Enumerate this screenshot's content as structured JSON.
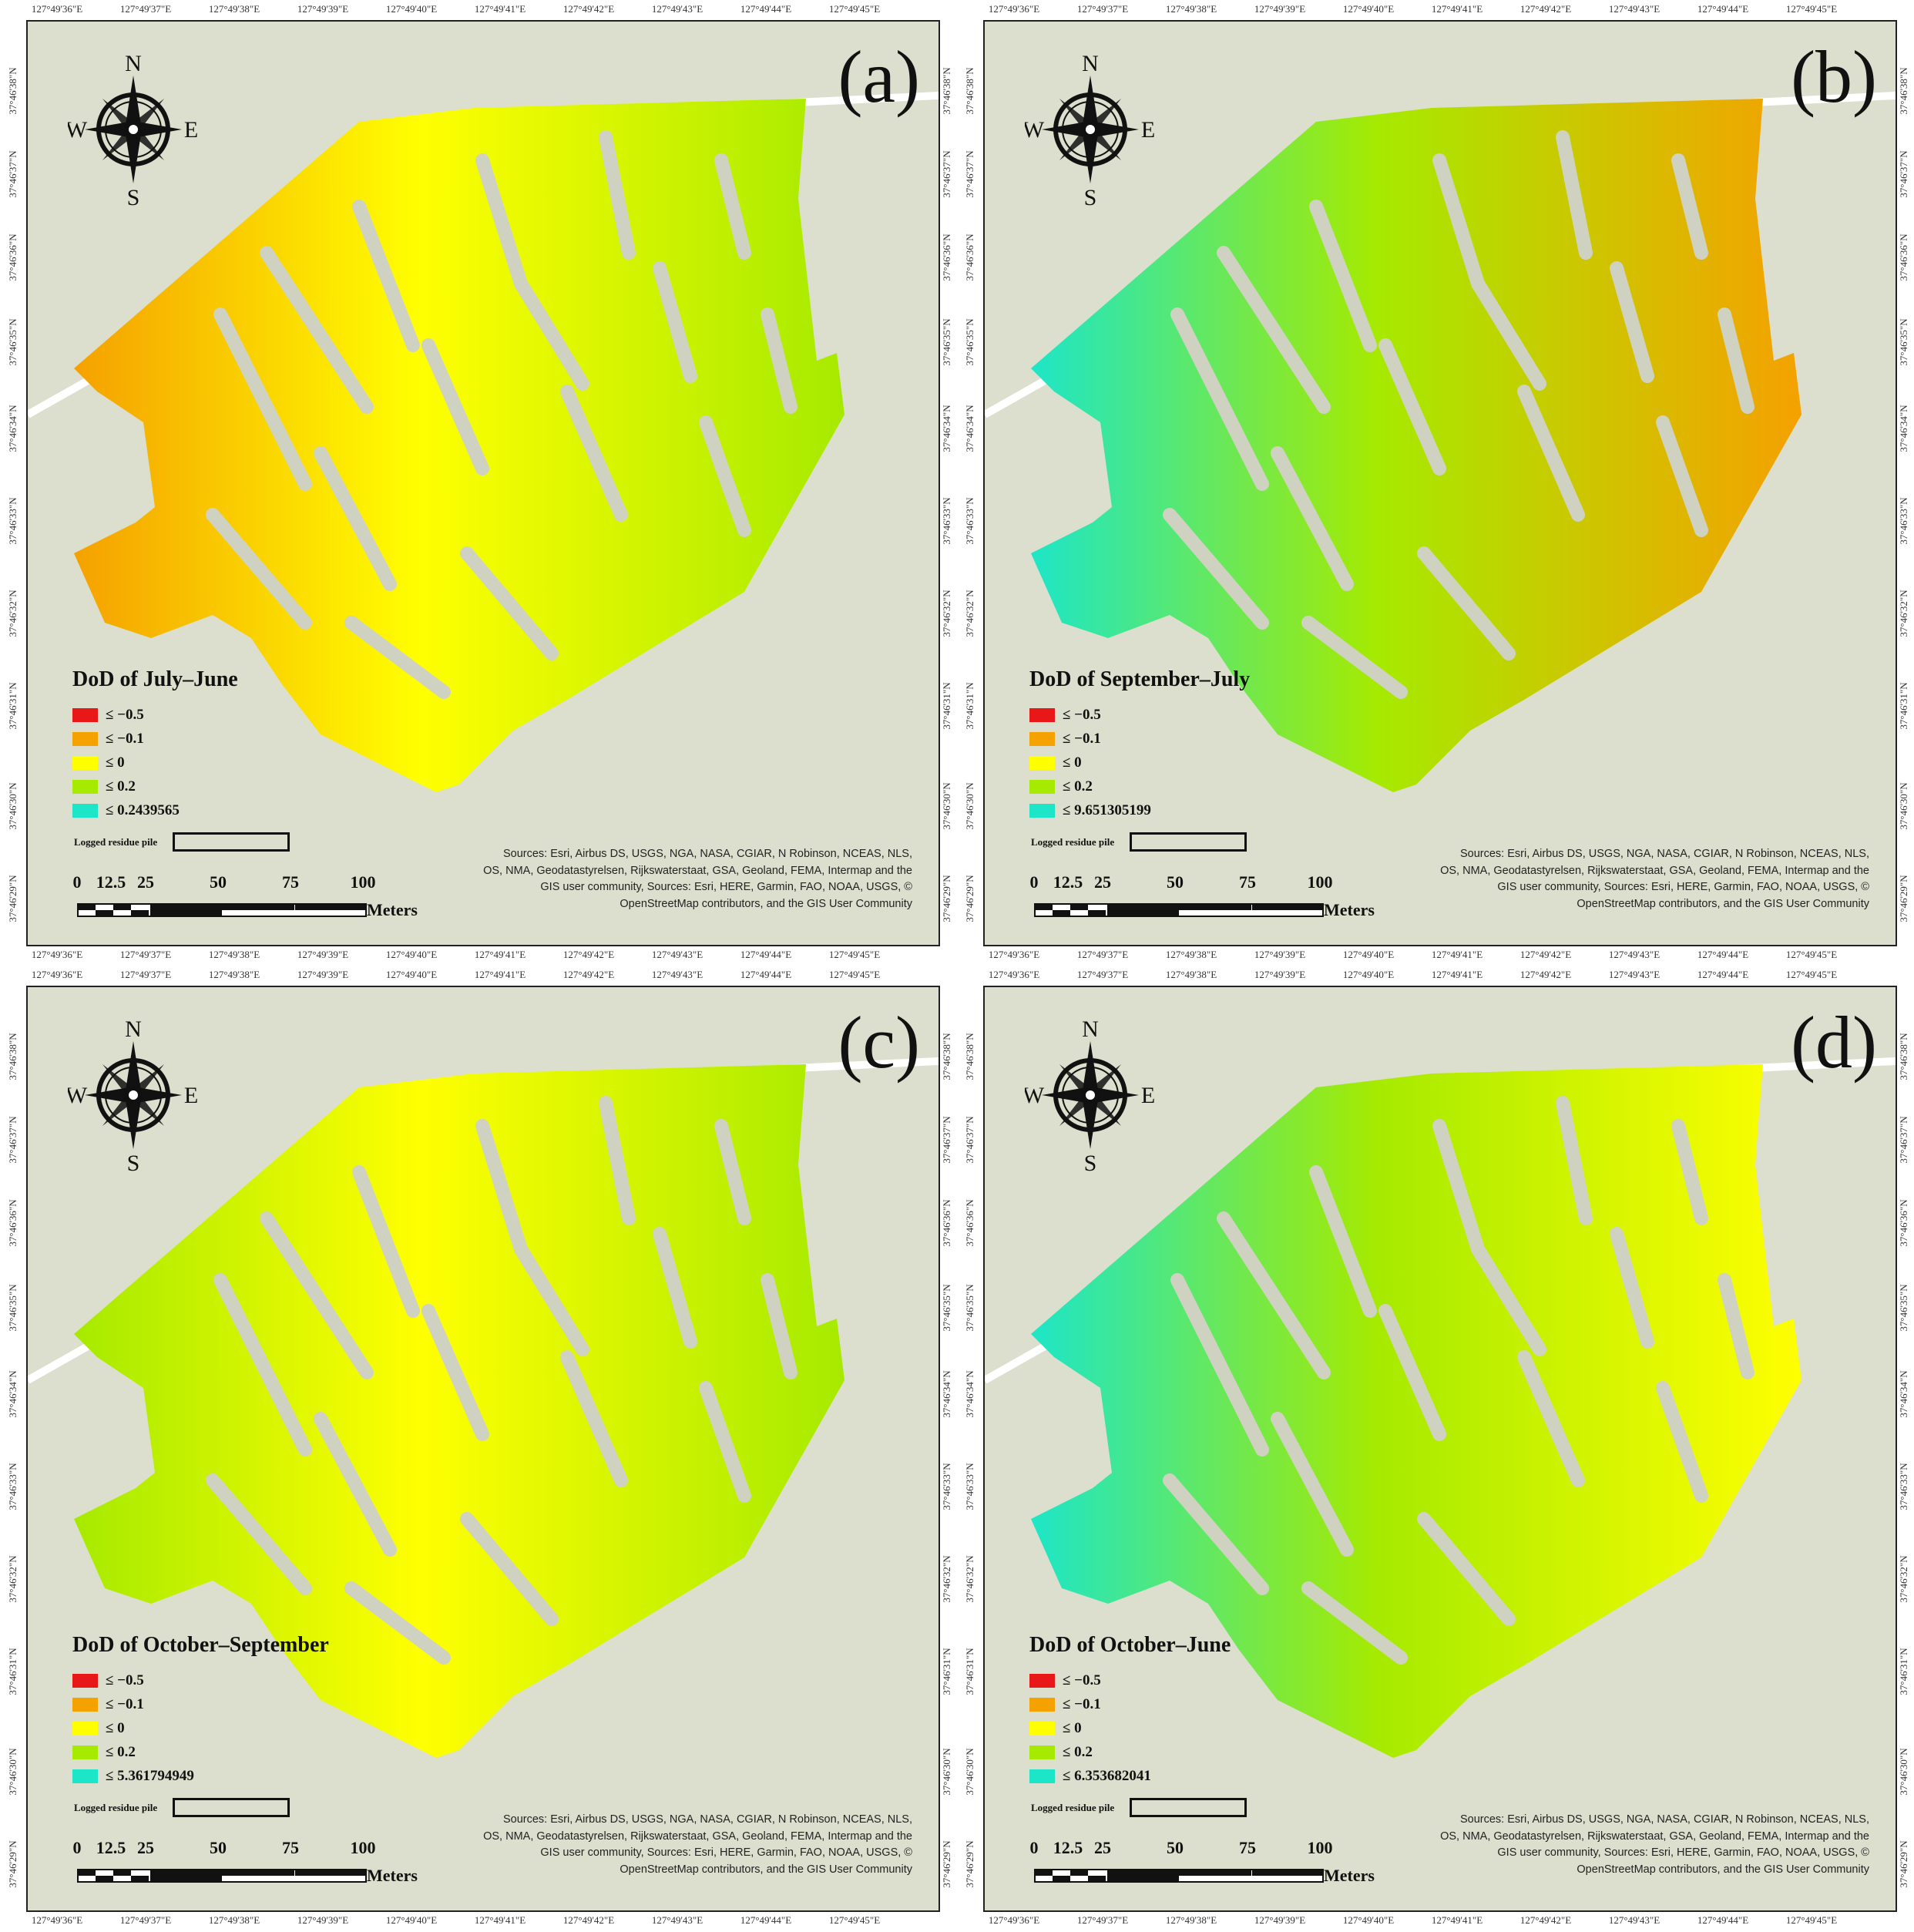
{
  "top_ticks": [
    "127°49'36\"E",
    "127°49'37\"E",
    "127°49'38\"E",
    "127°49'39\"E",
    "127°49'40\"E",
    "127°49'41\"E",
    "127°49'42\"E",
    "127°49'43\"E",
    "127°49'44\"E",
    "127°49'45\"E"
  ],
  "side_ticks": [
    "37°46'38\"N",
    "37°46'37\"N",
    "37°46'36\"N",
    "37°46'35\"N",
    "37°46'34\"N",
    "37°46'33\"N",
    "37°46'32\"N",
    "37°46'31\"N",
    "37°46'30\"N",
    "37°46'29\"N"
  ],
  "compass": {
    "n": "N",
    "s": "S",
    "e": "E",
    "w": "W"
  },
  "legend_labels": [
    "≤ −0.5",
    "≤ −0.1",
    "≤ 0",
    "≤ 0.2"
  ],
  "legend_colors": [
    "#e81818",
    "#f5a100",
    "#ffff00",
    "#a6ea00",
    "#1de6c8"
  ],
  "base_colors": {
    "background": "#dcdfcd",
    "road": "#ffffff",
    "strip": "#cfd2c0"
  },
  "pile_label": "Logged residue pile",
  "scale": {
    "ticks": [
      "0",
      "12.5",
      "25",
      "50",
      "75",
      "100"
    ],
    "units": "Meters"
  },
  "sources": "Sources: Esri, Airbus DS, USGS, NGA, NASA, CGIAR, N Robinson, NCEAS, NLS, OS, NMA, Geodatastyrelsen, Rijkswaterstaat, GSA, Geoland, FEMA, Intermap and the GIS user community, Sources: Esri, HERE, Garmin, FAO, NOAA, USGS, © OpenStreetMap contributors, and the GIS User Community",
  "panels": [
    {
      "label": "(a)",
      "title": "DoD of July–June",
      "max_label": "≤ 0.2439565",
      "fill": [
        "#f5a100",
        "#ffff00",
        "#a6ea00"
      ]
    },
    {
      "label": "(b)",
      "title": "DoD of September–July",
      "max_label": "≤ 9.651305199",
      "fill": [
        "#1de6c8",
        "#a6ea00",
        "#f5a100"
      ]
    },
    {
      "label": "(c)",
      "title": "DoD of October–September",
      "max_label": "≤ 5.361794949",
      "fill": [
        "#a6ea00",
        "#ffff00",
        "#a6ea00"
      ]
    },
    {
      "label": "(d)",
      "title": "DoD of October–June",
      "max_label": "≤ 6.353682041",
      "fill": [
        "#1de6c8",
        "#a6ea00",
        "#ffff00"
      ]
    }
  ]
}
